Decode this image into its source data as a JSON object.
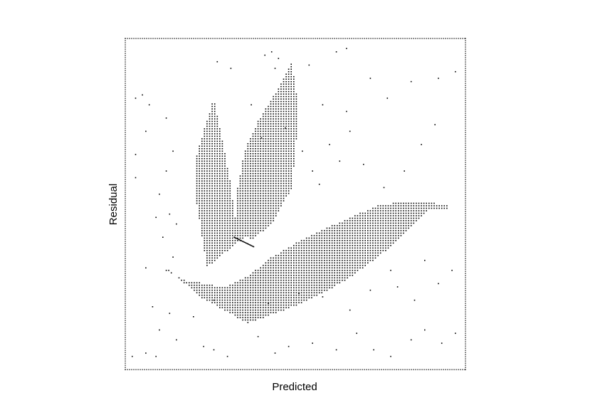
{
  "chart_data": {
    "type": "scatter",
    "title": "",
    "xlabel": "Predicted",
    "ylabel": "Residual",
    "grid": false,
    "legend": "none",
    "xlim": [
      0,
      1
    ],
    "ylim": [
      0,
      1
    ],
    "tick_labels_shown": false,
    "marker_color": "#000000",
    "frame": "dotted",
    "pattern": "dense point field shaped like a three-petal leaf plus sparse scattered background points",
    "shape": {
      "petals": [
        [
          [
            0.24,
            0.31
          ],
          [
            0.21,
            0.5
          ],
          [
            0.21,
            0.65
          ],
          [
            0.23,
            0.72
          ],
          [
            0.26,
            0.82
          ],
          [
            0.29,
            0.67
          ],
          [
            0.31,
            0.56
          ],
          [
            0.32,
            0.47
          ],
          [
            0.35,
            0.4
          ]
        ],
        [
          [
            0.32,
            0.43
          ],
          [
            0.33,
            0.55
          ],
          [
            0.35,
            0.66
          ],
          [
            0.39,
            0.75
          ],
          [
            0.45,
            0.85
          ],
          [
            0.49,
            0.93
          ],
          [
            0.51,
            0.78
          ],
          [
            0.49,
            0.55
          ],
          [
            0.43,
            0.44
          ],
          [
            0.37,
            0.39
          ]
        ],
        [
          [
            0.04,
            0.31
          ],
          [
            0.13,
            0.3
          ],
          [
            0.22,
            0.22
          ],
          [
            0.36,
            0.14
          ],
          [
            0.52,
            0.2
          ],
          [
            0.65,
            0.27
          ],
          [
            0.78,
            0.37
          ],
          [
            0.89,
            0.48
          ],
          [
            0.97,
            0.49
          ],
          [
            0.87,
            0.51
          ],
          [
            0.75,
            0.5
          ],
          [
            0.64,
            0.45
          ],
          [
            0.53,
            0.4
          ],
          [
            0.43,
            0.34
          ],
          [
            0.37,
            0.29
          ],
          [
            0.29,
            0.25
          ],
          [
            0.18,
            0.27
          ],
          [
            0.12,
            0.3
          ]
        ]
      ],
      "stem": [
        [
          0.32,
          0.4
        ],
        [
          0.38,
          0.37
        ]
      ]
    },
    "sparse_points": [
      [
        0.27,
        0.93
      ],
      [
        0.31,
        0.91
      ],
      [
        0.41,
        0.95
      ],
      [
        0.43,
        0.96
      ],
      [
        0.45,
        0.94
      ],
      [
        0.44,
        0.91
      ],
      [
        0.54,
        0.92
      ],
      [
        0.62,
        0.96
      ],
      [
        0.65,
        0.97
      ],
      [
        0.72,
        0.88
      ],
      [
        0.77,
        0.82
      ],
      [
        0.84,
        0.87
      ],
      [
        0.92,
        0.88
      ],
      [
        0.97,
        0.9
      ],
      [
        0.03,
        0.82
      ],
      [
        0.05,
        0.83
      ],
      [
        0.07,
        0.8
      ],
      [
        0.12,
        0.76
      ],
      [
        0.06,
        0.72
      ],
      [
        0.03,
        0.65
      ],
      [
        0.03,
        0.58
      ],
      [
        0.1,
        0.53
      ],
      [
        0.12,
        0.6
      ],
      [
        0.14,
        0.66
      ],
      [
        0.09,
        0.46
      ],
      [
        0.13,
        0.47
      ],
      [
        0.15,
        0.44
      ],
      [
        0.11,
        0.4
      ],
      [
        0.14,
        0.34
      ],
      [
        0.02,
        0.04
      ],
      [
        0.06,
        0.05
      ],
      [
        0.09,
        0.04
      ],
      [
        0.15,
        0.09
      ],
      [
        0.23,
        0.07
      ],
      [
        0.26,
        0.06
      ],
      [
        0.3,
        0.04
      ],
      [
        0.39,
        0.1
      ],
      [
        0.44,
        0.05
      ],
      [
        0.48,
        0.07
      ],
      [
        0.55,
        0.08
      ],
      [
        0.62,
        0.06
      ],
      [
        0.68,
        0.11
      ],
      [
        0.73,
        0.06
      ],
      [
        0.78,
        0.04
      ],
      [
        0.84,
        0.09
      ],
      [
        0.88,
        0.12
      ],
      [
        0.93,
        0.08
      ],
      [
        0.97,
        0.11
      ],
      [
        0.1,
        0.12
      ],
      [
        0.13,
        0.17
      ],
      [
        0.08,
        0.19
      ],
      [
        0.2,
        0.16
      ],
      [
        0.26,
        0.21
      ],
      [
        0.42,
        0.2
      ],
      [
        0.51,
        0.23
      ],
      [
        0.58,
        0.22
      ],
      [
        0.66,
        0.18
      ],
      [
        0.72,
        0.24
      ],
      [
        0.8,
        0.25
      ],
      [
        0.85,
        0.21
      ],
      [
        0.92,
        0.26
      ],
      [
        0.96,
        0.3
      ],
      [
        0.88,
        0.33
      ],
      [
        0.78,
        0.3
      ],
      [
        0.6,
        0.68
      ],
      [
        0.63,
        0.63
      ],
      [
        0.7,
        0.62
      ],
      [
        0.76,
        0.55
      ],
      [
        0.82,
        0.6
      ],
      [
        0.87,
        0.68
      ],
      [
        0.91,
        0.74
      ],
      [
        0.66,
        0.72
      ],
      [
        0.57,
        0.56
      ],
      [
        0.55,
        0.6
      ],
      [
        0.52,
        0.66
      ],
      [
        0.47,
        0.73
      ],
      [
        0.4,
        0.7
      ],
      [
        0.37,
        0.8
      ],
      [
        0.58,
        0.8
      ],
      [
        0.65,
        0.78
      ]
    ]
  },
  "page": {
    "xlabel_text": "Predicted",
    "ylabel_text": "Residual"
  }
}
